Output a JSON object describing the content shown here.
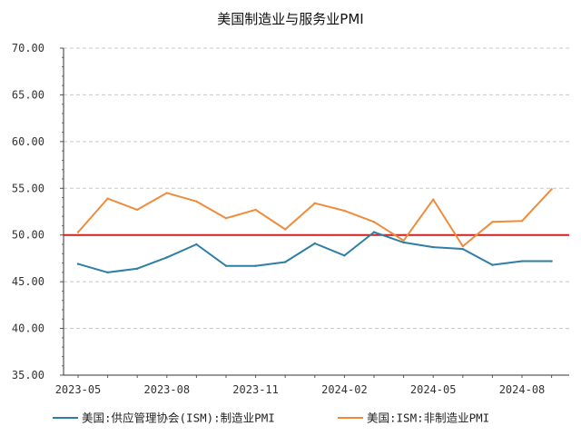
{
  "chart_data": {
    "type": "line",
    "title": "美国制造业与服务业PMI",
    "xlabel": "",
    "ylabel": "",
    "ylim": [
      35,
      70
    ],
    "yticks": [
      "35.00",
      "40.00",
      "45.00",
      "50.00",
      "55.00",
      "60.00",
      "65.00",
      "70.00"
    ],
    "x": [
      "2023-05",
      "2023-06",
      "2023-07",
      "2023-08",
      "2023-09",
      "2023-10",
      "2023-11",
      "2023-12",
      "2024-01",
      "2024-02",
      "2024-03",
      "2024-04",
      "2024-05",
      "2024-06",
      "2024-07",
      "2024-08",
      "2024-09"
    ],
    "xtick_labels": [
      "2023-05",
      "2023-08",
      "2023-11",
      "2024-02",
      "2024-05",
      "2024-08"
    ],
    "series": [
      {
        "name": "美国:供应管理协会(ISM):制造业PMI",
        "color": "#2e7ea6",
        "values": [
          46.9,
          46.0,
          46.4,
          47.6,
          49.0,
          46.7,
          46.7,
          47.1,
          49.1,
          47.8,
          50.3,
          49.2,
          48.7,
          48.5,
          46.8,
          47.2,
          47.2
        ]
      },
      {
        "name": "美国:ISM:非制造业PMI",
        "color": "#ef8c3c",
        "values": [
          50.3,
          53.9,
          52.7,
          54.5,
          53.6,
          51.8,
          52.7,
          50.6,
          53.4,
          52.6,
          51.4,
          49.4,
          53.8,
          48.8,
          51.4,
          51.5,
          54.9
        ]
      }
    ],
    "reference_line": {
      "value": 50,
      "color": "#cc2222"
    },
    "grid": "horizontal-dashed",
    "legend_position": "bottom"
  }
}
